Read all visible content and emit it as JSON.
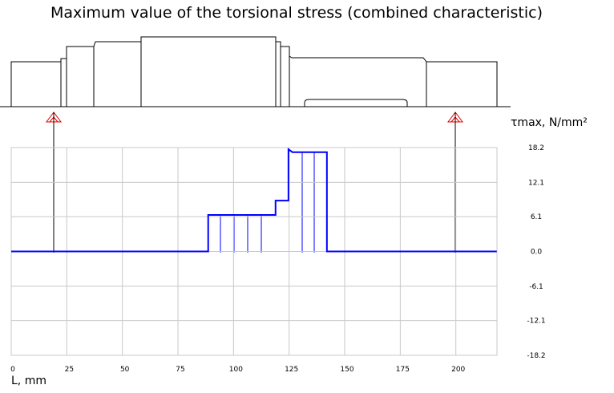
{
  "chart_data": {
    "type": "line",
    "title": "Maximum value of the torsional stress (combined characteristic)",
    "y_label": "τmax, N/mm²",
    "x_label": "L, mm",
    "xlim": [
      0,
      218.5
    ],
    "xticks": [
      0,
      25,
      50,
      75,
      100,
      125,
      150,
      175,
      200
    ],
    "ylim": [
      -18.2,
      18.2
    ],
    "yticks": [
      18.2,
      12.1,
      6.1,
      {
        "value": 0,
        "label": "0.0"
      },
      -6.1,
      -12.1,
      -18.2
    ],
    "grid": true,
    "series": [
      {
        "color": "#0000ff",
        "x": [
          0,
          88.6,
          88.6,
          118.9,
          118.9,
          124.7,
          124.7,
          126.5,
          142,
          142,
          218.4
        ],
        "values": [
          0,
          0,
          6.4,
          6.4,
          8.9,
          8.9,
          17.9,
          17.4,
          17.4,
          0,
          0
        ]
      }
    ]
  }
}
